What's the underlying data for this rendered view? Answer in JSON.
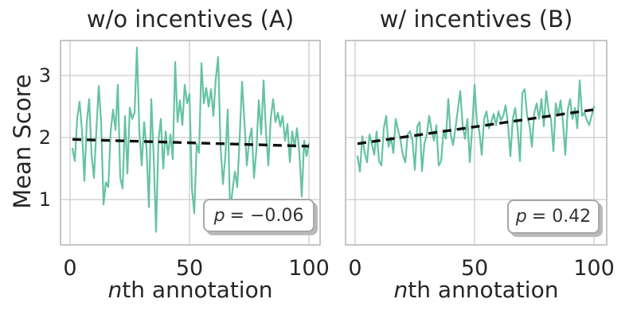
{
  "figure": {
    "background": "#ffffff",
    "text_color": "#262626",
    "grid_color": "#cccccc",
    "spine_color": "#bdbdbd",
    "ylabel": "Mean Score"
  },
  "chart_data": [
    {
      "type": "line",
      "title": "w/o incentives (A)",
      "xlabel": {
        "italic": "n",
        "rest": "th annotation"
      },
      "ylabel": "Mean Score",
      "x_ticks": [
        0,
        50,
        100
      ],
      "y_ticks": [
        1,
        2,
        3
      ],
      "xlim": [
        -4,
        105
      ],
      "ylim": [
        0.27,
        3.56
      ],
      "grid": true,
      "legend_position": "none",
      "line_color": "#66c2a5",
      "x_range": [
        1,
        100
      ],
      "values": [
        1.82,
        1.62,
        2.32,
        2.58,
        2.1,
        1.3,
        2.25,
        2.62,
        1.72,
        1.35,
        2.1,
        2.83,
        2.25,
        0.92,
        1.28,
        1.2,
        2.1,
        2.45,
        2.12,
        2.85,
        1.35,
        1.18,
        2.35,
        1.42,
        2.48,
        2.3,
        2.4,
        3.45,
        2.1,
        1.55,
        2.25,
        1.82,
        0.88,
        2.62,
        1.7,
        0.48,
        1.95,
        2.3,
        1.5,
        2.1,
        1.72,
        2.05,
        1.65,
        3.22,
        2.25,
        2.6,
        2.2,
        2.85,
        2.55,
        2.7,
        1.18,
        0.78,
        1.9,
        1.75,
        3.2,
        2.55,
        2.8,
        2.5,
        2.78,
        2.35,
        2.95,
        3.3,
        1.85,
        1.25,
        1.7,
        2.45,
        0.78,
        1.15,
        1.45,
        1.2,
        2.0,
        2.9,
        2.25,
        1.55,
        1.95,
        2.15,
        1.35,
        1.8,
        2.6,
        2.05,
        2.92,
        2.1,
        1.55,
        2.3,
        2.62,
        2.25,
        2.4,
        2.18,
        2.35,
        1.95,
        2.22,
        1.6,
        2.1,
        1.85,
        2.15,
        1.75,
        1.05,
        1.95,
        1.7,
        1.9
      ],
      "trend": {
        "x": [
          1,
          100
        ],
        "y": [
          1.97,
          1.86
        ],
        "color": "#111111",
        "dashed": true
      },
      "annotation": {
        "italic": "p",
        "rest": "= −0.06",
        "position": "lower right"
      }
    },
    {
      "type": "line",
      "title": "w/ incentives (B)",
      "xlabel": {
        "italic": "n",
        "rest": "th annotation"
      },
      "ylabel": "Mean Score",
      "x_ticks": [
        0,
        50,
        100
      ],
      "y_ticks": [
        1,
        2,
        3
      ],
      "xlim": [
        -4,
        105
      ],
      "ylim": [
        0.27,
        3.56
      ],
      "grid": true,
      "legend_position": "none",
      "line_color": "#66c2a5",
      "x_range": [
        1,
        100
      ],
      "values": [
        1.7,
        1.45,
        2.02,
        1.75,
        1.6,
        2.05,
        1.9,
        1.72,
        2.1,
        1.62,
        1.55,
        2.15,
        2.35,
        1.85,
        2.0,
        1.75,
        2.3,
        2.12,
        1.95,
        1.72,
        1.6,
        2.05,
        2.1,
        1.95,
        1.48,
        2.18,
        2.25,
        1.46,
        1.9,
        2.05,
        2.35,
        2.12,
        1.95,
        2.2,
        1.55,
        1.62,
        2.1,
        1.98,
        2.62,
        2.05,
        1.88,
        2.15,
        2.45,
        2.75,
        2.2,
        1.98,
        2.3,
        1.6,
        2.15,
        2.85,
        2.25,
        2.1,
        1.72,
        2.3,
        2.42,
        2.15,
        2.25,
        2.38,
        2.2,
        2.42,
        2.28,
        2.35,
        2.52,
        2.2,
        1.7,
        2.3,
        2.48,
        2.15,
        1.62,
        2.72,
        2.78,
        2.35,
        2.2,
        1.85,
        2.4,
        2.55,
        2.3,
        2.62,
        2.18,
        2.75,
        2.42,
        2.3,
        1.78,
        2.55,
        2.35,
        2.6,
        2.25,
        1.72,
        2.45,
        2.62,
        2.3,
        2.48,
        2.15,
        2.92,
        2.35,
        2.4,
        2.28,
        2.2,
        2.35,
        2.5
      ],
      "trend": {
        "x": [
          1,
          100
        ],
        "y": [
          1.9,
          2.45
        ],
        "color": "#111111",
        "dashed": true
      },
      "annotation": {
        "italic": "p",
        "rest": "= 0.42",
        "position": "lower right"
      }
    }
  ]
}
